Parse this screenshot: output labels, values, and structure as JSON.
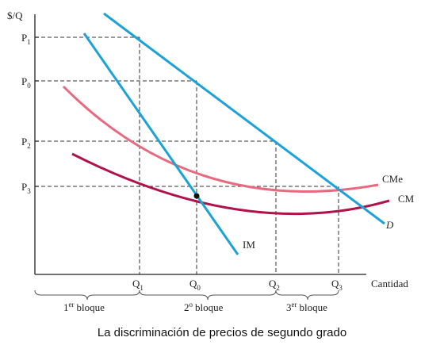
{
  "caption": "La discriminación de precios de segundo grado",
  "axes": {
    "y_label": "$/Q",
    "x_label": "Cantidad"
  },
  "price_labels": [
    {
      "key": "p1",
      "main": "P",
      "sub": "1"
    },
    {
      "key": "p0",
      "main": "P",
      "sub": "0"
    },
    {
      "key": "p2",
      "main": "P",
      "sub": "2"
    },
    {
      "key": "p3",
      "main": "P",
      "sub": "3"
    }
  ],
  "quantity_labels": [
    {
      "key": "q1",
      "main": "Q",
      "sub": "1"
    },
    {
      "key": "q0",
      "main": "Q",
      "sub": "0"
    },
    {
      "key": "q2",
      "main": "Q",
      "sub": "2"
    },
    {
      "key": "q3",
      "main": "Q",
      "sub": "3"
    }
  ],
  "curves": {
    "demand": {
      "label": "D",
      "color": "#1ba3d8"
    },
    "marginal_revenue": {
      "label": "IM",
      "color": "#1ba3d8"
    },
    "average_cost": {
      "label": "CMe",
      "color": "#e86a7e"
    },
    "marginal_cost": {
      "label": "CM",
      "color": "#b0134a"
    }
  },
  "blocks": [
    {
      "key": "b1",
      "num": "1",
      "sup": "er",
      "word": "bloque"
    },
    {
      "key": "b2",
      "num": "2",
      "sup": "o",
      "word": "bloque"
    },
    {
      "key": "b3",
      "num": "3",
      "sup": "er",
      "word": "bloque"
    }
  ]
}
